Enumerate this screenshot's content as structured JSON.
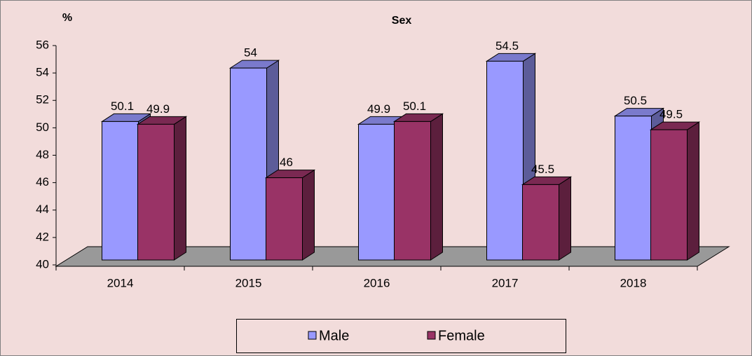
{
  "chart_data": {
    "type": "bar3d",
    "title": "Sex",
    "ylabel": "%",
    "categories": [
      "2014",
      "2015",
      "2016",
      "2017",
      "2018"
    ],
    "series": [
      {
        "name": "Male",
        "color": "#9999ff",
        "values": [
          50.1,
          54,
          49.9,
          54.5,
          50.5
        ]
      },
      {
        "name": "Female",
        "color": "#993366",
        "values": [
          49.9,
          46,
          50.1,
          45.5,
          49.5
        ]
      }
    ],
    "ylim": [
      40,
      56
    ],
    "yticks": [
      40,
      42,
      44,
      46,
      48,
      50,
      52,
      54,
      56
    ],
    "legend": "bottom"
  }
}
